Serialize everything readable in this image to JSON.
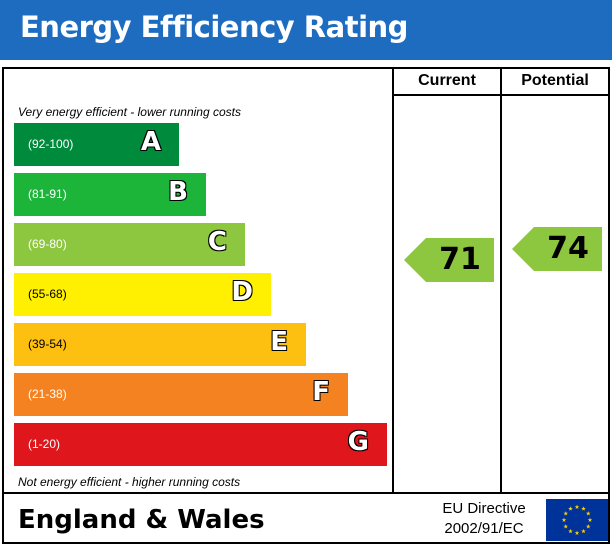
{
  "header": {
    "title": "Energy Efficiency Rating"
  },
  "columns": {
    "current": "Current",
    "potential": "Potential"
  },
  "captions": {
    "top": "Very energy efficient - lower running costs",
    "bottom": "Not energy efficient - higher running costs"
  },
  "footer": {
    "region": "England & Wales",
    "directive_line1": "EU Directive",
    "directive_line2": "2002/91/EC",
    "flag_icon": "eu-flag-icon"
  },
  "chart_data": {
    "type": "bar",
    "bands": [
      {
        "letter": "A",
        "range": "(92-100)",
        "color": "#008a3c",
        "min": 92,
        "max": 100
      },
      {
        "letter": "B",
        "range": "(81-91)",
        "color": "#1cb53a",
        "min": 81,
        "max": 91
      },
      {
        "letter": "C",
        "range": "(69-80)",
        "color": "#8dc63f",
        "min": 69,
        "max": 80
      },
      {
        "letter": "D",
        "range": "(55-68)",
        "color": "#ffef00",
        "min": 55,
        "max": 68
      },
      {
        "letter": "E",
        "range": "(39-54)",
        "color": "#fdc010",
        "min": 39,
        "max": 54
      },
      {
        "letter": "F",
        "range": "(21-38)",
        "color": "#f58220",
        "min": 21,
        "max": 38
      },
      {
        "letter": "G",
        "range": "(1-20)",
        "color": "#e0161d",
        "min": 1,
        "max": 20
      }
    ],
    "current": {
      "value": 71,
      "band": "C",
      "color": "#8dc63f"
    },
    "potential": {
      "value": 74,
      "band": "C",
      "color": "#8dc63f"
    }
  }
}
